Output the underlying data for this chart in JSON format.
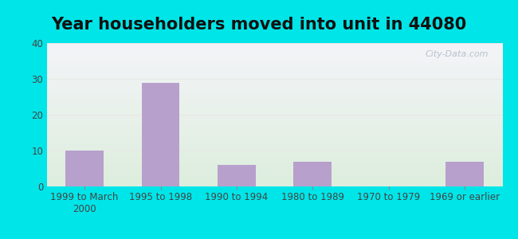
{
  "title": "Year householders moved into unit in 44080",
  "categories": [
    "1999 to March\n2000",
    "1995 to 1998",
    "1990 to 1994",
    "1980 to 1989",
    "1970 to 1979",
    "1969 or earlier"
  ],
  "values": [
    10,
    29,
    6,
    7,
    0,
    7
  ],
  "bar_color": "#b8a0cc",
  "ylim": [
    0,
    40
  ],
  "yticks": [
    0,
    10,
    20,
    30,
    40
  ],
  "background_outer": "#00e5e8",
  "background_plot_top": "#f4f4f8",
  "background_plot_bottom": "#ddeedd",
  "grid_color": "#e8e8e8",
  "watermark": "City-Data.com",
  "title_fontsize": 15,
  "tick_fontsize": 8.5
}
